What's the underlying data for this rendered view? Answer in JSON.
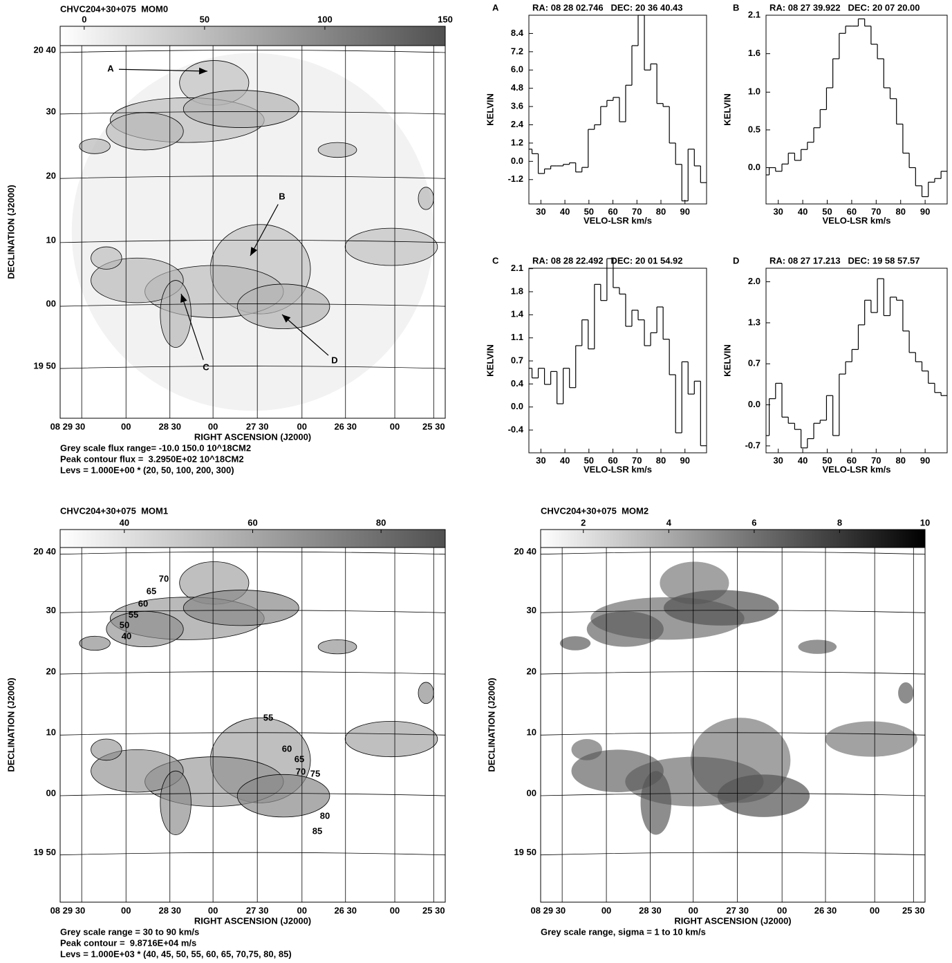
{
  "chart_data": [
    {
      "type": "map",
      "title": "CHVC204+30+075  MOM0",
      "cbarlim": [
        -10,
        150
      ],
      "colorbar_ticks": [
        0,
        50,
        100,
        150
      ],
      "cbar_colors": [
        "#ffffff",
        "#505050"
      ],
      "xtick_labels": [
        "08 29 30",
        "00",
        "28 30",
        "00",
        "27 30",
        "00",
        "26 30",
        "00",
        "25 30"
      ],
      "ytick_labels": [
        "20 40",
        "30",
        "20",
        "10",
        "00",
        "19 50"
      ],
      "xlabel": "RIGHT ASCENSION (J2000)",
      "ylabel": "DECLINATION (J2000)",
      "annotations": [
        "A",
        "B",
        "C",
        "D"
      ],
      "notes": [
        "Grey scale flux range= -10.0 150.0 10^18CM2",
        "Peak contour flux =  3.2950E+02 10^18CM2",
        "Levs = 1.000E+00 * (20, 50, 100, 200, 300)"
      ]
    },
    {
      "type": "step",
      "panel_label": "A",
      "title": "RA: 08 28 02.746   DEC: 20 36 40.43",
      "xlabel": "VELO-LSR km/s",
      "ylabel": "KELVIN",
      "x": [
        25,
        27.6,
        30.2,
        32.8,
        35.4,
        38,
        40.6,
        43.2,
        45.8,
        48.4,
        51,
        53.6,
        56.2,
        58.8,
        61.4,
        64,
        66.6,
        69.2,
        71.8,
        74.4,
        77,
        79.6,
        82.2,
        84.8,
        87.4,
        90,
        92.6,
        95.2,
        97.8
      ],
      "values": [
        0.8,
        0.5,
        -0.8,
        -0.5,
        -0.3,
        -0.3,
        -0.2,
        -0.1,
        -0.7,
        -0.4,
        2.1,
        2.4,
        3.6,
        4.0,
        4.2,
        2.6,
        5.0,
        7.6,
        9.6,
        6.0,
        6.4,
        3.8,
        3.6,
        1.2,
        -0.2,
        -2.6,
        0.8,
        -0.3,
        -1.4
      ],
      "xlim": [
        25,
        99
      ],
      "ylim": [
        -2.8,
        9.6
      ],
      "xticks": [
        30,
        40,
        50,
        60,
        70,
        80,
        90
      ],
      "yticks": [
        -1.2,
        {
          "value": 0,
          "label": "0.0"
        },
        1.2,
        2.4,
        3.6,
        4.8,
        {
          "value": 6,
          "label": "6.0"
        },
        7.2,
        8.4
      ]
    },
    {
      "type": "step",
      "panel_label": "B",
      "title": "RA: 08 27 39.922   DEC: 20 07 20.00",
      "xlabel": "VELO-LSR km/s",
      "ylabel": "KELVIN",
      "x": [
        25,
        27.6,
        30.2,
        32.8,
        35.4,
        38,
        40.6,
        43.2,
        45.8,
        48.4,
        51,
        53.6,
        56.2,
        58.8,
        61.4,
        64,
        66.6,
        69.2,
        71.8,
        74.4,
        77,
        79.6,
        82.2,
        84.8,
        87.4,
        90,
        92.6,
        95.2,
        97.8
      ],
      "values": [
        -0.1,
        0.0,
        -0.05,
        0.05,
        0.2,
        0.1,
        0.25,
        0.35,
        0.55,
        0.8,
        1.1,
        1.5,
        1.85,
        1.95,
        1.95,
        2.05,
        1.95,
        1.7,
        1.5,
        1.1,
        0.95,
        0.6,
        0.2,
        0.0,
        -0.25,
        -0.4,
        -0.2,
        -0.15,
        -0.05
      ],
      "xlim": [
        25,
        99
      ],
      "ylim": [
        -0.5,
        2.1
      ],
      "xticks": [
        30,
        40,
        50,
        60,
        70,
        80,
        90
      ],
      "yticks": [
        {
          "value": 0,
          "label": "0.0"
        },
        {
          "value": 0.52,
          "label": "0.5"
        },
        {
          "value": 1.04,
          "label": "1.0"
        },
        {
          "value": 1.57,
          "label": "1.6"
        },
        2.1
      ]
    },
    {
      "type": "step",
      "panel_label": "C",
      "title": "RA: 08 28 22.492   DEC: 20 01 54.92",
      "xlabel": "VELO-LSR km/s",
      "ylabel": "KELVIN",
      "x": [
        25,
        27.6,
        30.2,
        32.8,
        35.4,
        38,
        40.6,
        43.2,
        45.8,
        48.4,
        51,
        53.6,
        56.2,
        58.8,
        61.4,
        64,
        66.6,
        69.2,
        71.8,
        74.4,
        77,
        79.6,
        82.2,
        84.8,
        87.4,
        90,
        92.6,
        95.2,
        97.8
      ],
      "values": [
        0.6,
        0.45,
        0.6,
        0.35,
        0.55,
        0.05,
        0.6,
        0.3,
        0.95,
        1.35,
        0.9,
        1.9,
        1.65,
        2.3,
        1.85,
        1.75,
        1.25,
        1.5,
        1.35,
        0.95,
        1.15,
        1.55,
        1.05,
        0.5,
        -0.4,
        0.7,
        0.2,
        0.4,
        -0.6
      ],
      "xlim": [
        25,
        99
      ],
      "ylim": [
        -0.71,
        2.15
      ],
      "xticks": [
        30,
        40,
        50,
        60,
        70,
        80,
        90
      ],
      "yticks": [
        {
          "value": -0.357,
          "label": "-0.4"
        },
        {
          "value": 0,
          "label": "0.0"
        },
        {
          "value": 0.357,
          "label": "0.4"
        },
        {
          "value": 0.714,
          "label": "0.7"
        },
        {
          "value": 1.071,
          "label": "1.1"
        },
        {
          "value": 1.429,
          "label": "1.4"
        },
        {
          "value": 1.786,
          "label": "1.8"
        },
        {
          "value": 2.143,
          "label": "2.1"
        }
      ]
    },
    {
      "type": "step",
      "panel_label": "D",
      "title": "RA: 08 27 17.213   DEC: 19 58 57.57",
      "xlabel": "VELO-LSR km/s",
      "ylabel": "KELVIN",
      "x": [
        25,
        27.6,
        30.2,
        32.8,
        35.4,
        38,
        40.6,
        43.2,
        45.8,
        48.4,
        51,
        53.6,
        56.2,
        58.8,
        61.4,
        64,
        66.6,
        69.2,
        71.8,
        74.4,
        77,
        79.6,
        82.2,
        84.8,
        87.4,
        90,
        92.6,
        95.2,
        97.8
      ],
      "values": [
        -0.5,
        0.1,
        0.35,
        -0.2,
        -0.3,
        -0.4,
        -0.7,
        -0.55,
        -0.3,
        -0.25,
        0.15,
        -0.5,
        0.5,
        0.7,
        0.9,
        1.3,
        1.7,
        1.5,
        2.05,
        1.45,
        1.75,
        1.7,
        1.2,
        0.85,
        0.7,
        0.55,
        0.35,
        0.2,
        0.15
      ],
      "xlim": [
        25,
        99
      ],
      "ylim": [
        -0.78,
        2.22
      ],
      "xticks": [
        30,
        40,
        50,
        60,
        70,
        80,
        90
      ],
      "yticks": [
        {
          "value": -0.667,
          "label": "-0.7"
        },
        {
          "value": 0,
          "label": "0.0"
        },
        {
          "value": 0.667,
          "label": "0.7"
        },
        {
          "value": 1.333,
          "label": "1.3"
        },
        {
          "value": 2,
          "label": "2.0"
        }
      ]
    },
    {
      "type": "map",
      "title": "CHVC204+30+075  MOM1",
      "cbarlim": [
        30,
        90
      ],
      "colorbar_ticks": [
        40,
        60,
        80
      ],
      "cbar_colors": [
        "#ffffff",
        "#505050"
      ],
      "xtick_labels": [
        "08 29 30",
        "00",
        "28 30",
        "00",
        "27 30",
        "00",
        "26 30",
        "00",
        "25 30"
      ],
      "ytick_labels": [
        "20 40",
        "30",
        "20",
        "10",
        "00",
        "19 50"
      ],
      "xlabel": "RIGHT ASCENSION (J2000)",
      "ylabel": "DECLINATION (J2000)",
      "annotations": [
        "70",
        "65",
        "60",
        "55",
        "50",
        "40",
        "55",
        "60",
        "65",
        "70",
        "75",
        "80",
        "85"
      ],
      "notes": [
        "Grey scale range = 30 to 90 km/s",
        "Peak contour =  9.8716E+04 m/s",
        "Levs = 1.000E+03 * (40, 45, 50, 55, 60, 65, 70,75, 80, 85)"
      ]
    },
    {
      "type": "map",
      "title": "CHVC204+30+075  MOM2",
      "cbarlim": [
        1,
        10
      ],
      "colorbar_ticks": [
        2,
        4,
        6,
        8,
        10
      ],
      "cbar_colors": [
        "#ffffff",
        "#000000"
      ],
      "xtick_labels": [
        "08 29 30",
        "00",
        "28 30",
        "00",
        "27 30",
        "00",
        "26 30",
        "00",
        "25 30"
      ],
      "ytick_labels": [
        "20 40",
        "30",
        "20",
        "10",
        "00",
        "19 50"
      ],
      "xlabel": "RIGHT ASCENSION (J2000)",
      "ylabel": "DECLINATION (J2000)",
      "notes": [
        "Grey scale range, sigma = 1 to 10 km/s"
      ]
    }
  ]
}
